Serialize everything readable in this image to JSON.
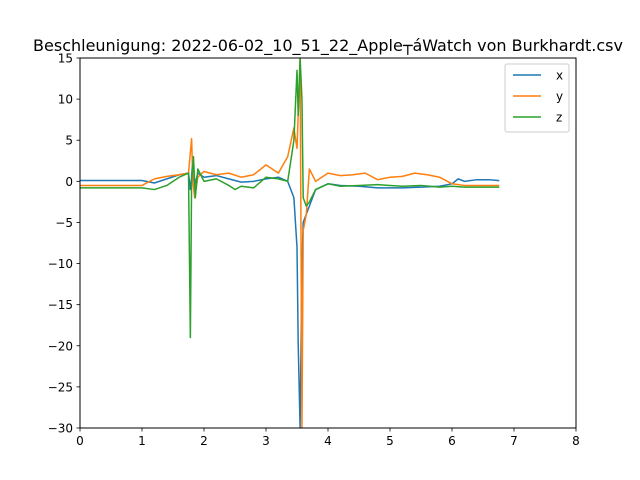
{
  "chart_data": {
    "type": "line",
    "title": "Beschleunigung: 2022-06-02_10_51_22_Apple┬áWatch von Burkhardt.csv",
    "xlabel": "",
    "ylabel": "",
    "xlim": [
      0,
      8
    ],
    "ylim": [
      -30,
      15
    ],
    "x_ticks": [
      "0",
      "1",
      "2",
      "3",
      "4",
      "5",
      "6",
      "7",
      "8"
    ],
    "y_ticks": [
      "15",
      "10",
      "5",
      "0",
      "−5",
      "−10",
      "−15",
      "−20",
      "−25",
      "−30"
    ],
    "grid": false,
    "legend_position": "top-right",
    "series": [
      {
        "name": "x",
        "color": "#1f77b4",
        "x": [
          0,
          0.5,
          1.0,
          1.2,
          1.4,
          1.6,
          1.75,
          1.78,
          1.8,
          1.82,
          1.85,
          1.9,
          2.0,
          2.2,
          2.4,
          2.6,
          2.8,
          3.0,
          3.2,
          3.35,
          3.45,
          3.5,
          3.52,
          3.55,
          3.58,
          3.6,
          3.65,
          3.7,
          3.8,
          4.0,
          4.2,
          4.5,
          4.8,
          5.0,
          5.2,
          5.5,
          5.8,
          6.0,
          6.1,
          6.2,
          6.4,
          6.6,
          6.75
        ],
        "y": [
          0.1,
          0.1,
          0.1,
          -0.2,
          0.3,
          0.8,
          1.0,
          -1.0,
          0.5,
          3.0,
          -0.5,
          1.0,
          0.5,
          0.7,
          0.3,
          -0.1,
          0.0,
          0.3,
          0.5,
          0.0,
          -2.0,
          -8.0,
          -20.0,
          -30.0,
          -10.0,
          -5.0,
          -4.0,
          -3.0,
          -1.0,
          -0.3,
          -0.5,
          -0.6,
          -0.8,
          -0.8,
          -0.8,
          -0.7,
          -0.6,
          -0.3,
          0.3,
          0.0,
          0.2,
          0.2,
          0.1
        ]
      },
      {
        "name": "y",
        "color": "#ff7f0e",
        "x": [
          0,
          0.5,
          1.0,
          1.2,
          1.4,
          1.6,
          1.75,
          1.8,
          1.82,
          1.85,
          1.9,
          2.0,
          2.2,
          2.4,
          2.6,
          2.8,
          3.0,
          3.2,
          3.35,
          3.45,
          3.5,
          3.55,
          3.58,
          3.6,
          3.65,
          3.7,
          3.8,
          4.0,
          4.2,
          4.4,
          4.6,
          4.8,
          5.0,
          5.2,
          5.4,
          5.6,
          5.8,
          6.0,
          6.2,
          6.4,
          6.6,
          6.75
        ],
        "y": [
          -0.5,
          -0.5,
          -0.5,
          0.3,
          0.6,
          0.8,
          1.0,
          5.2,
          0.0,
          -2.0,
          0.5,
          1.2,
          0.8,
          1.0,
          0.5,
          0.8,
          2.0,
          1.0,
          3.0,
          6.5,
          4.0,
          15.0,
          -30.0,
          -6.0,
          -4.0,
          1.5,
          0.0,
          1.0,
          0.7,
          0.8,
          1.0,
          0.2,
          0.5,
          0.6,
          1.0,
          0.8,
          0.5,
          -0.3,
          -0.5,
          -0.5,
          -0.5,
          -0.5
        ]
      },
      {
        "name": "z",
        "color": "#2ca02c",
        "x": [
          0,
          0.5,
          1.0,
          1.2,
          1.4,
          1.6,
          1.75,
          1.78,
          1.8,
          1.83,
          1.86,
          1.9,
          2.0,
          2.2,
          2.4,
          2.5,
          2.6,
          2.8,
          3.0,
          3.2,
          3.35,
          3.45,
          3.5,
          3.52,
          3.55,
          3.58,
          3.6,
          3.65,
          3.7,
          3.8,
          4.0,
          4.2,
          4.5,
          4.8,
          5.0,
          5.2,
          5.5,
          5.8,
          6.0,
          6.2,
          6.4,
          6.6,
          6.75
        ],
        "y": [
          -0.8,
          -0.8,
          -0.8,
          -1.0,
          -0.5,
          0.5,
          1.0,
          -19.0,
          0.0,
          3.0,
          -2.0,
          1.5,
          0.0,
          0.3,
          -0.5,
          -1.0,
          -0.6,
          -0.8,
          0.5,
          0.3,
          0.0,
          5.0,
          13.5,
          8.0,
          15.0,
          10.0,
          -2.0,
          -3.0,
          -2.5,
          -1.0,
          -0.3,
          -0.6,
          -0.5,
          -0.4,
          -0.5,
          -0.6,
          -0.5,
          -0.7,
          -0.6,
          -0.7,
          -0.7,
          -0.7,
          -0.7
        ]
      }
    ]
  }
}
